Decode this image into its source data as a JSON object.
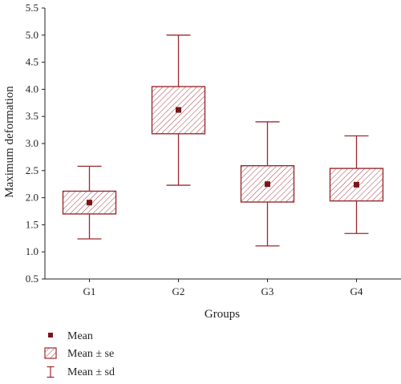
{
  "chart_data": {
    "type": "box",
    "xlabel": "Groups",
    "ylabel": "Maximum deformation",
    "ylim": [
      0.5,
      5.5
    ],
    "yticks": [
      "0.5",
      "1.0",
      "1.5",
      "2.0",
      "2.5",
      "3.0",
      "3.5",
      "4.0",
      "4.5",
      "5.0",
      "5.5"
    ],
    "categories": [
      "G1",
      "G2",
      "G3",
      "G4"
    ],
    "series": [
      {
        "category": "G1",
        "mean": 1.91,
        "se_low": 1.7,
        "se_high": 2.12,
        "sd_low": 1.24,
        "sd_high": 2.58
      },
      {
        "category": "G2",
        "mean": 3.62,
        "se_low": 3.18,
        "se_high": 4.05,
        "sd_low": 2.23,
        "sd_high": 5.0
      },
      {
        "category": "G3",
        "mean": 2.25,
        "se_low": 1.92,
        "se_high": 2.59,
        "sd_low": 1.11,
        "sd_high": 3.4
      },
      {
        "category": "G4",
        "mean": 2.24,
        "se_low": 1.94,
        "se_high": 2.54,
        "sd_low": 1.34,
        "sd_high": 3.14
      }
    ],
    "legend": [
      {
        "key": "mean",
        "label": "Mean"
      },
      {
        "key": "se",
        "label": "Mean ± se"
      },
      {
        "key": "sd",
        "label": "Mean ± sd"
      }
    ],
    "legend_position": "bottom-left",
    "grid": false,
    "colors": {
      "stroke": "#9b2a30",
      "marker": "#7a1518",
      "axis": "#231f20"
    }
  }
}
